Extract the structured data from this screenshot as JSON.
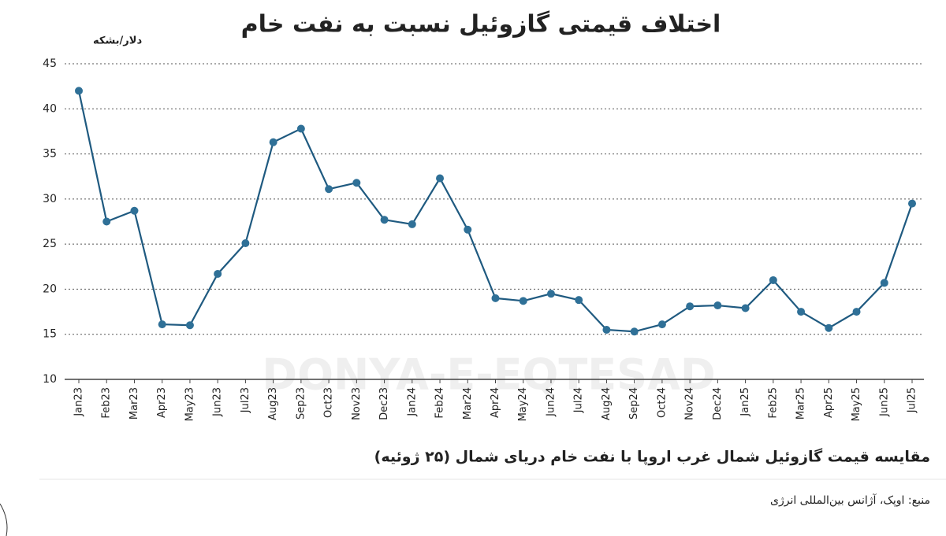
{
  "chart_data": {
    "type": "line",
    "title": "اختلاف قیمتی گازوئیل نسبت به نفت خام",
    "y_label": "دلار/بشکه",
    "subtitle": "مقایسه قیمت گازوئیل شمال غرب اروپا با نفت خام دریای شمال (۲۵ ژوئیه)",
    "source": "منبع: اوپک، آژانس بین‌المللی انرژی",
    "watermark": "DONYA-E-EQTESAD",
    "categories": [
      "Jan23",
      "Feb23",
      "Mar23",
      "Apr23",
      "May23",
      "Jun23",
      "Jul23",
      "Aug23",
      "Sep23",
      "Oct23",
      "Nov23",
      "Dec23",
      "Jan24",
      "Feb24",
      "Mar24",
      "Apr24",
      "May24",
      "Jun24",
      "Jul24",
      "Aug24",
      "Sep24",
      "Oct24",
      "Nov24",
      "Dec24",
      "Jan25",
      "Feb25",
      "Mar25",
      "Apr25",
      "May25",
      "Jun25",
      "Jul25"
    ],
    "values": [
      42,
      27.5,
      28.7,
      16.1,
      16,
      21.7,
      25.1,
      36.3,
      37.8,
      31.1,
      31.8,
      27.7,
      27.2,
      32.3,
      26.6,
      19,
      18.7,
      19.5,
      18.8,
      15.5,
      15.3,
      16.1,
      18.1,
      18.2,
      17.9,
      21,
      17.5,
      15.7,
      17.5,
      20.7,
      29.5
    ],
    "color": "#1f5a80",
    "marker_color": "#2f7097",
    "ylim": [
      10,
      45
    ],
    "yticks": [
      10,
      15,
      20,
      25,
      30,
      35,
      40,
      45
    ],
    "grid": true
  }
}
